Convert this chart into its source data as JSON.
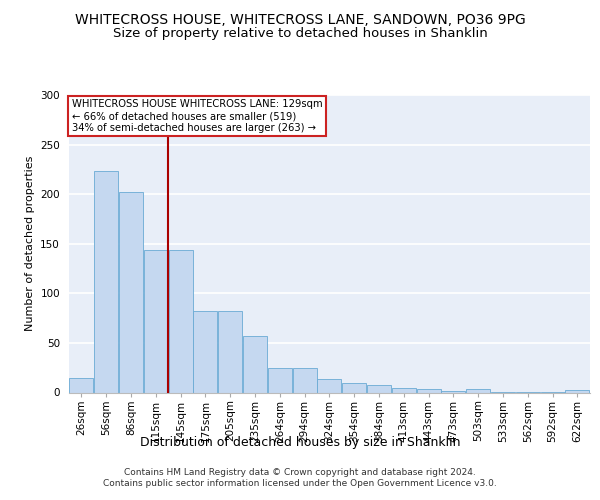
{
  "title": "WHITECROSS HOUSE, WHITECROSS LANE, SANDOWN, PO36 9PG",
  "subtitle": "Size of property relative to detached houses in Shanklin",
  "xlabel": "Distribution of detached houses by size in Shanklin",
  "ylabel": "Number of detached properties",
  "bar_labels": [
    "26sqm",
    "56sqm",
    "86sqm",
    "115sqm",
    "145sqm",
    "175sqm",
    "205sqm",
    "235sqm",
    "264sqm",
    "294sqm",
    "324sqm",
    "354sqm",
    "384sqm",
    "413sqm",
    "443sqm",
    "473sqm",
    "503sqm",
    "533sqm",
    "562sqm",
    "592sqm",
    "622sqm"
  ],
  "bar_values": [
    15,
    223,
    202,
    144,
    144,
    82,
    82,
    57,
    25,
    25,
    14,
    10,
    8,
    5,
    4,
    2,
    4,
    1,
    1,
    1,
    3
  ],
  "bar_color": "#c5d8f0",
  "bar_edge_color": "#6aaad4",
  "vline_x": 3.5,
  "vline_color": "#aa0000",
  "annotation_text": "WHITECROSS HOUSE WHITECROSS LANE: 129sqm\n← 66% of detached houses are smaller (519)\n34% of semi-detached houses are larger (263) →",
  "annotation_box_color": "#ffffff",
  "annotation_box_edge": "#cc2222",
  "ylim": [
    0,
    300
  ],
  "yticks": [
    0,
    50,
    100,
    150,
    200,
    250,
    300
  ],
  "background_color": "#ffffff",
  "plot_bg_color": "#e8eef8",
  "grid_color": "#ffffff",
  "footer_text": "Contains HM Land Registry data © Crown copyright and database right 2024.\nContains public sector information licensed under the Open Government Licence v3.0.",
  "title_fontsize": 10,
  "subtitle_fontsize": 9.5,
  "xlabel_fontsize": 9,
  "ylabel_fontsize": 8,
  "tick_fontsize": 7.5,
  "footer_fontsize": 6.5
}
